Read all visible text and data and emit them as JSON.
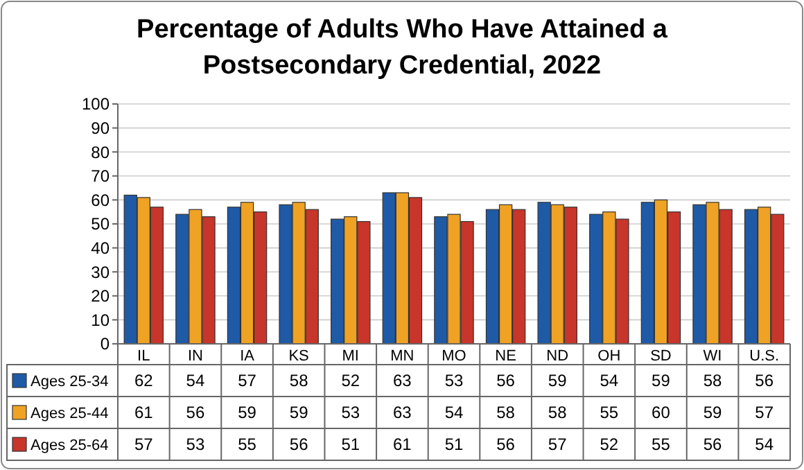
{
  "chart_data": {
    "type": "bar",
    "title": "Percentage of Adults Who Have Attained a Postsecondary Credential, 2022",
    "categories": [
      "IL",
      "IN",
      "IA",
      "KS",
      "MI",
      "MN",
      "MO",
      "NE",
      "ND",
      "OH",
      "SD",
      "WI",
      "U.S."
    ],
    "series": [
      {
        "name": "Ages 25-34",
        "color": "#1f5aa6",
        "values": [
          62,
          54,
          57,
          58,
          52,
          63,
          53,
          56,
          59,
          54,
          59,
          58,
          56
        ]
      },
      {
        "name": "Ages 25-44",
        "color": "#f0a224",
        "values": [
          61,
          56,
          59,
          59,
          53,
          63,
          54,
          58,
          58,
          55,
          60,
          59,
          57
        ]
      },
      {
        "name": "Ages 25-64",
        "color": "#c8352a",
        "values": [
          57,
          53,
          55,
          56,
          51,
          61,
          51,
          56,
          57,
          52,
          55,
          56,
          54
        ]
      }
    ],
    "ylim": [
      0,
      100
    ],
    "yticks": [
      0,
      10,
      20,
      30,
      40,
      50,
      60,
      70,
      80,
      90,
      100
    ],
    "grid": "y",
    "legend": "bottom",
    "data_labels": true
  }
}
